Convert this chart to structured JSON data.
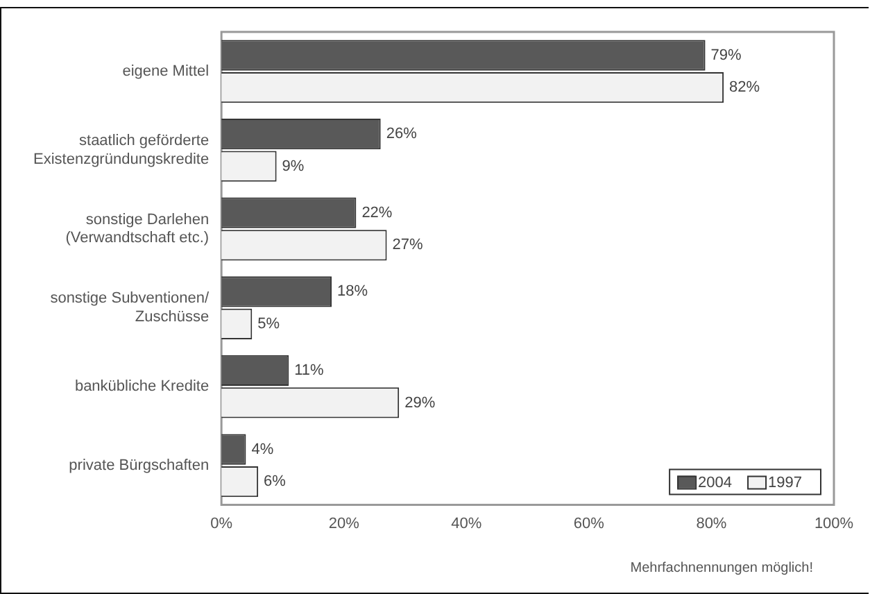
{
  "chart_data": {
    "type": "bar",
    "orientation": "horizontal",
    "categories": [
      "eigene Mittel",
      "staatlich geförderte Existenzgründungskredite",
      "sonstige Darlehen (Verwandtschaft etc.)",
      "sonstige Subventionen/ Zuschüsse",
      "bankübliche Kredite",
      "private Bürgschaften"
    ],
    "series": [
      {
        "name": "2004",
        "color": "#595959",
        "values": [
          79,
          26,
          22,
          18,
          11,
          4
        ],
        "value_labels": [
          "79%",
          "26%",
          "22%",
          "18%",
          "11%",
          "4%"
        ]
      },
      {
        "name": "1997",
        "color": "#f2f2f2",
        "values": [
          82,
          9,
          27,
          5,
          29,
          6
        ],
        "value_labels": [
          "82%",
          "9%",
          "27%",
          "5%",
          "29%",
          "6%"
        ]
      }
    ],
    "xlim": [
      0,
      100
    ],
    "xticks": [
      {
        "value": 0,
        "label": "0%"
      },
      {
        "value": 20,
        "label": "20%"
      },
      {
        "value": 40,
        "label": "40%"
      },
      {
        "value": 60,
        "label": "60%"
      },
      {
        "value": 80,
        "label": "80%"
      },
      {
        "value": 100,
        "label": "100%"
      }
    ],
    "grid": false,
    "legend": "bottom right",
    "annotations": [
      "Mehrfachnennungen möglich!"
    ]
  }
}
